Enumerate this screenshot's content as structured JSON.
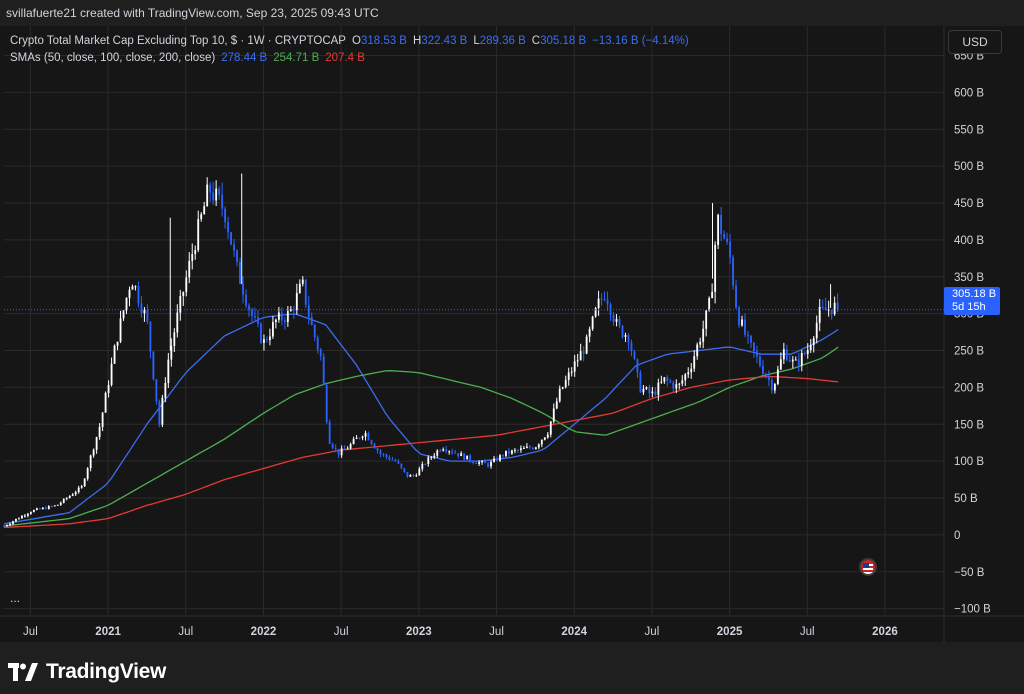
{
  "header": {
    "attribution": "svillafuerte21 created with TradingView.com, Sep 23, 2025 09:43 UTC"
  },
  "legend": {
    "title": "Crypto Total Market Cap Excluding Top 10, $ · 1W · CRYPTOCAP",
    "o_label": "O",
    "o_value": "318.53 B",
    "h_label": "H",
    "h_value": "322.43 B",
    "l_label": "L",
    "l_value": "289.36 B",
    "c_label": "C",
    "c_value": "305.18 B",
    "change": "−13.16 B (−4.14%)",
    "sma_label": "SMAs (50, close, 100, close, 200, close)",
    "sma50_value": "278.44 B",
    "sma100_value": "254.71 B",
    "sma200_value": "207.4 B"
  },
  "currency_button": "USD",
  "price_tag": {
    "price": "305.18 B",
    "countdown": "5d 15h"
  },
  "more_indicator": "...",
  "brand": {
    "name": "TradingView"
  },
  "colors": {
    "background": "#161616",
    "up_candle": "#ffffff",
    "down_candle": "#2962ff",
    "sma50": "#3a6df0",
    "sma100": "#4caf50",
    "sma200": "#e53935",
    "grid": "#2a2a2a"
  },
  "chart_data": {
    "type": "line",
    "title": "Crypto Total Market Cap Excluding Top 10, $ · 1W · CRYPTOCAP",
    "ylim": [
      -110,
      690
    ],
    "y_ticks": [
      -100,
      -50,
      0,
      50,
      100,
      150,
      200,
      250,
      300,
      350,
      400,
      450,
      500,
      550,
      600,
      650
    ],
    "y_tick_labels": [
      "−100 B",
      "−50 B",
      "0",
      "50 B",
      "100 B",
      "150 B",
      "200 B",
      "250 B",
      "300 B",
      "350 B",
      "400 B",
      "450 B",
      "500 B",
      "550 B",
      "600 B",
      "650 B"
    ],
    "x_range": [
      2020.33,
      2026.38
    ],
    "x_ticks": [
      {
        "x": 2020.5,
        "label": "Jul"
      },
      {
        "x": 2021.0,
        "label": "2021"
      },
      {
        "x": 2021.5,
        "label": "Jul"
      },
      {
        "x": 2022.0,
        "label": "2022"
      },
      {
        "x": 2022.5,
        "label": "Jul"
      },
      {
        "x": 2023.0,
        "label": "2023"
      },
      {
        "x": 2023.5,
        "label": "Jul"
      },
      {
        "x": 2024.0,
        "label": "2024"
      },
      {
        "x": 2024.5,
        "label": "Jul"
      },
      {
        "x": 2025.0,
        "label": "2025"
      },
      {
        "x": 2025.5,
        "label": "Jul"
      },
      {
        "x": 2026.0,
        "label": "2026"
      }
    ],
    "last_price": 305.18,
    "series": [
      {
        "name": "Crypto Total Market Cap Excluding Top 10",
        "kind": "candlestick-close",
        "x": [
          2020.33,
          2020.5,
          2020.67,
          2020.83,
          2020.95,
          2021.05,
          2021.15,
          2021.25,
          2021.33,
          2021.38,
          2021.45,
          2021.55,
          2021.65,
          2021.75,
          2021.83,
          2021.92,
          2022.0,
          2022.08,
          2022.17,
          2022.25,
          2022.3,
          2022.37,
          2022.42,
          2022.48,
          2022.55,
          2022.65,
          2022.75,
          2022.85,
          2022.92,
          2022.97,
          2023.05,
          2023.15,
          2023.25,
          2023.35,
          2023.45,
          2023.55,
          2023.65,
          2023.75,
          2023.83,
          2023.9,
          2024.0,
          2024.08,
          2024.15,
          2024.2,
          2024.28,
          2024.35,
          2024.42,
          2024.5,
          2024.58,
          2024.67,
          2024.75,
          2024.83,
          2024.88,
          2024.92,
          2025.0,
          2025.05,
          2025.12,
          2025.2,
          2025.28,
          2025.35,
          2025.42,
          2025.5,
          2025.58,
          2025.67,
          2025.7
        ],
        "y": [
          12,
          32,
          40,
          65,
          150,
          260,
          350,
          290,
          150,
          230,
          300,
          390,
          470,
          440,
          360,
          300,
          260,
          290,
          300,
          340,
          290,
          240,
          130,
          110,
          120,
          140,
          110,
          100,
          80,
          80,
          100,
          120,
          110,
          100,
          95,
          110,
          115,
          120,
          140,
          190,
          230,
          260,
          310,
          330,
          280,
          270,
          200,
          190,
          210,
          200,
          230,
          280,
          320,
          430,
          380,
          300,
          260,
          230,
          200,
          250,
          230,
          250,
          300,
          310,
          305.18
        ],
        "annotations": {
          "high_2021": 490,
          "high_2024": 450,
          "high_2025": 340
        }
      },
      {
        "name": "SMA 50",
        "x": [
          2020.33,
          2020.75,
          2021.0,
          2021.25,
          2021.5,
          2021.75,
          2022.0,
          2022.2,
          2022.4,
          2022.6,
          2022.8,
          2023.0,
          2023.2,
          2023.4,
          2023.6,
          2023.8,
          2024.0,
          2024.2,
          2024.4,
          2024.6,
          2024.8,
          2025.0,
          2025.2,
          2025.4,
          2025.6,
          2025.7
        ],
        "y": [
          15,
          30,
          70,
          150,
          220,
          270,
          295,
          300,
          285,
          230,
          160,
          110,
          100,
          100,
          105,
          115,
          150,
          185,
          230,
          245,
          250,
          255,
          245,
          245,
          265,
          278.44
        ]
      },
      {
        "name": "SMA 100",
        "x": [
          2020.33,
          2020.75,
          2021.0,
          2021.25,
          2021.5,
          2021.75,
          2022.0,
          2022.2,
          2022.4,
          2022.6,
          2022.8,
          2023.0,
          2023.2,
          2023.4,
          2023.6,
          2023.8,
          2024.0,
          2024.2,
          2024.4,
          2024.6,
          2024.8,
          2025.0,
          2025.2,
          2025.4,
          2025.6,
          2025.7
        ],
        "y": [
          12,
          22,
          40,
          70,
          100,
          130,
          165,
          190,
          205,
          215,
          223,
          220,
          210,
          200,
          185,
          165,
          140,
          135,
          150,
          165,
          180,
          200,
          215,
          225,
          240,
          254.71
        ]
      },
      {
        "name": "SMA 200",
        "x": [
          2020.33,
          2020.75,
          2021.0,
          2021.25,
          2021.5,
          2021.75,
          2022.0,
          2022.25,
          2022.5,
          2022.75,
          2023.0,
          2023.25,
          2023.5,
          2023.75,
          2024.0,
          2024.25,
          2024.5,
          2024.75,
          2025.0,
          2025.25,
          2025.5,
          2025.7
        ],
        "y": [
          10,
          15,
          22,
          40,
          55,
          75,
          90,
          105,
          115,
          120,
          125,
          130,
          135,
          145,
          155,
          165,
          185,
          200,
          210,
          215,
          212,
          207.4
        ]
      }
    ]
  }
}
